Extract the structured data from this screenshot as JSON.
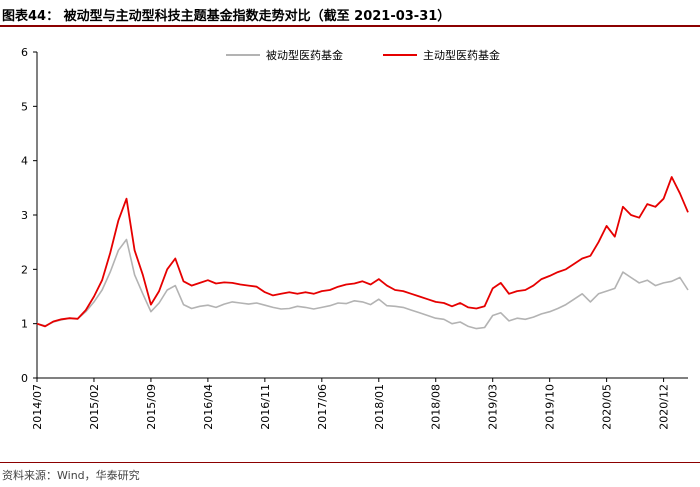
{
  "figure": {
    "title": "图表44：  被动型与主动型科技主题基金指数走势对比（截至 2021-03-31）",
    "source": "资料来源：Wind，华泰研究"
  },
  "chart_data": {
    "type": "line",
    "title": "",
    "xlabel": "",
    "ylabel": "",
    "ylim": [
      0,
      6
    ],
    "yticks": [
      0,
      1,
      2,
      3,
      4,
      5,
      6
    ],
    "xlim": [
      "2014-07",
      "2021-03"
    ],
    "xticks": [
      "2014/07",
      "2015/02",
      "2015/09",
      "2016/04",
      "2016/11",
      "2017/06",
      "2018/01",
      "2018/08",
      "2019/03",
      "2019/10",
      "2020/05",
      "2020/12"
    ],
    "legend_position": "top",
    "grid": false,
    "x": [
      "2014-07",
      "2014-08",
      "2014-09",
      "2014-10",
      "2014-11",
      "2014-12",
      "2015-01",
      "2015-02",
      "2015-03",
      "2015-04",
      "2015-05",
      "2015-06",
      "2015-07",
      "2015-08",
      "2015-09",
      "2015-10",
      "2015-11",
      "2015-12",
      "2016-01",
      "2016-02",
      "2016-03",
      "2016-04",
      "2016-05",
      "2016-06",
      "2016-07",
      "2016-08",
      "2016-09",
      "2016-10",
      "2016-11",
      "2016-12",
      "2017-01",
      "2017-02",
      "2017-03",
      "2017-04",
      "2017-05",
      "2017-06",
      "2017-07",
      "2017-08",
      "2017-09",
      "2017-10",
      "2017-11",
      "2017-12",
      "2018-01",
      "2018-02",
      "2018-03",
      "2018-04",
      "2018-05",
      "2018-06",
      "2018-07",
      "2018-08",
      "2018-09",
      "2018-10",
      "2018-11",
      "2018-12",
      "2019-01",
      "2019-02",
      "2019-03",
      "2019-04",
      "2019-05",
      "2019-06",
      "2019-07",
      "2019-08",
      "2019-09",
      "2019-10",
      "2019-11",
      "2019-12",
      "2020-01",
      "2020-02",
      "2020-03",
      "2020-04",
      "2020-05",
      "2020-06",
      "2020-07",
      "2020-08",
      "2020-09",
      "2020-10",
      "2020-11",
      "2020-12",
      "2021-01",
      "2021-02",
      "2021-03"
    ],
    "series": [
      {
        "name": "被动型医药基金",
        "color": "#b3b3b3",
        "values": [
          1.0,
          0.96,
          1.03,
          1.07,
          1.1,
          1.09,
          1.22,
          1.4,
          1.62,
          1.95,
          2.35,
          2.55,
          1.9,
          1.55,
          1.22,
          1.38,
          1.62,
          1.7,
          1.35,
          1.28,
          1.32,
          1.34,
          1.3,
          1.36,
          1.4,
          1.38,
          1.36,
          1.38,
          1.34,
          1.3,
          1.27,
          1.28,
          1.32,
          1.3,
          1.27,
          1.3,
          1.33,
          1.38,
          1.37,
          1.42,
          1.4,
          1.35,
          1.45,
          1.33,
          1.32,
          1.3,
          1.25,
          1.2,
          1.15,
          1.1,
          1.08,
          1.0,
          1.03,
          0.95,
          0.91,
          0.93,
          1.15,
          1.2,
          1.05,
          1.1,
          1.08,
          1.12,
          1.18,
          1.22,
          1.28,
          1.35,
          1.45,
          1.55,
          1.4,
          1.55,
          1.6,
          1.65,
          1.95,
          1.85,
          1.75,
          1.8,
          1.7,
          1.75,
          1.78,
          1.85,
          1.62
        ]
      },
      {
        "name": "主动型医药基金",
        "color": "#e60000",
        "values": [
          1.0,
          0.95,
          1.04,
          1.08,
          1.1,
          1.09,
          1.25,
          1.5,
          1.8,
          2.3,
          2.9,
          3.3,
          2.35,
          1.9,
          1.35,
          1.6,
          2.0,
          2.2,
          1.78,
          1.7,
          1.75,
          1.8,
          1.74,
          1.76,
          1.75,
          1.72,
          1.7,
          1.68,
          1.58,
          1.52,
          1.55,
          1.58,
          1.55,
          1.58,
          1.55,
          1.6,
          1.62,
          1.68,
          1.72,
          1.74,
          1.78,
          1.72,
          1.82,
          1.7,
          1.62,
          1.6,
          1.55,
          1.5,
          1.45,
          1.4,
          1.38,
          1.32,
          1.38,
          1.3,
          1.28,
          1.32,
          1.65,
          1.75,
          1.55,
          1.6,
          1.62,
          1.7,
          1.82,
          1.88,
          1.95,
          2.0,
          2.1,
          2.2,
          2.25,
          2.5,
          2.8,
          2.6,
          3.15,
          3.0,
          2.95,
          3.2,
          3.15,
          3.3,
          3.7,
          3.4,
          3.05
        ]
      }
    ]
  }
}
